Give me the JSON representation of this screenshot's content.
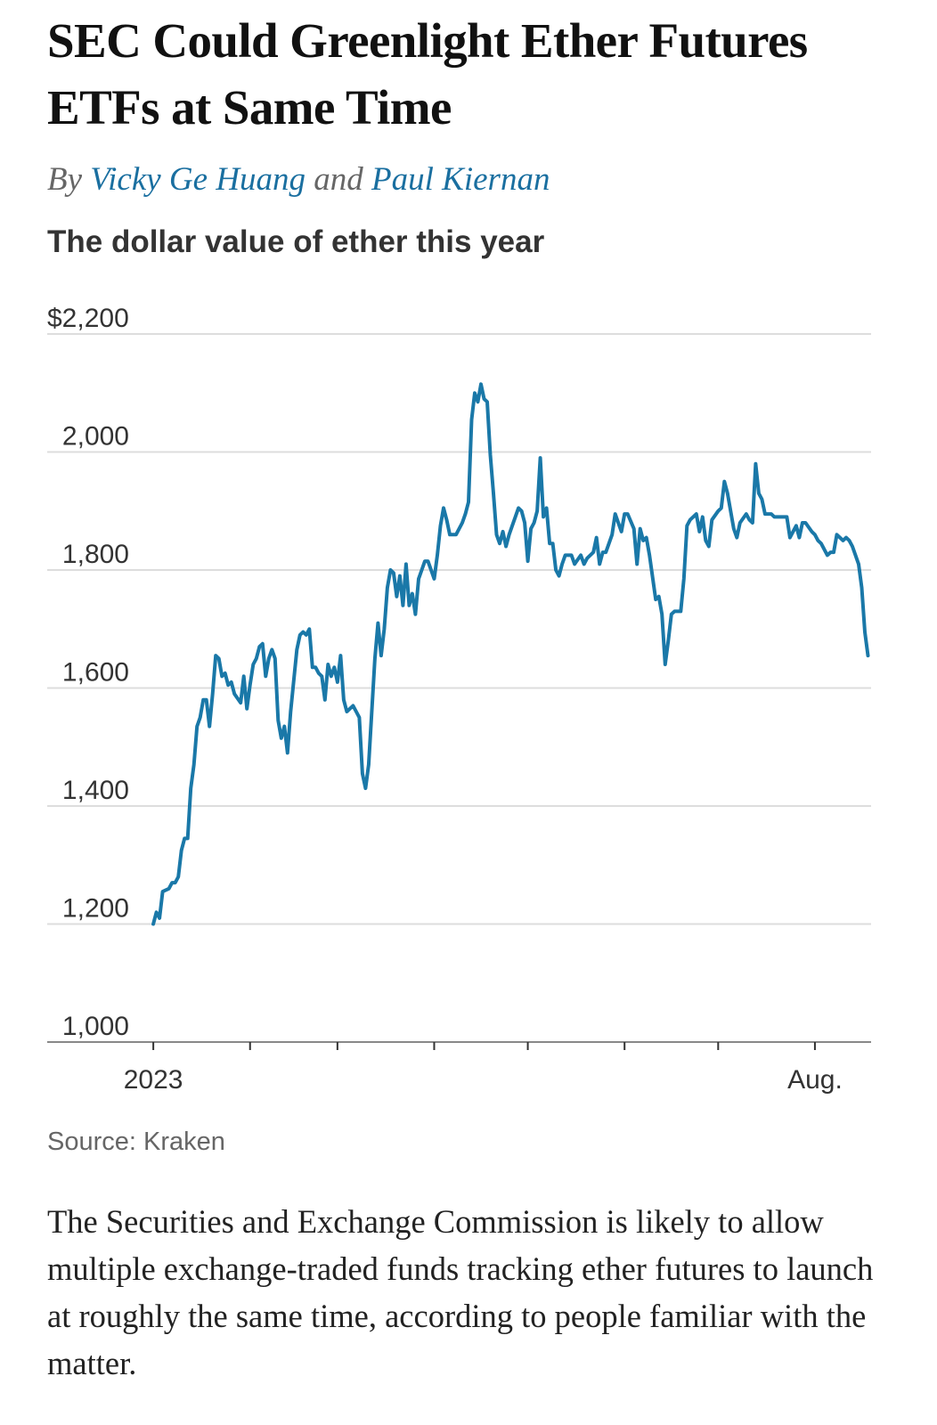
{
  "headline": "SEC Could Greenlight Ether Futures ETFs at Same Time",
  "byline": {
    "prefix": "By",
    "authors": [
      "Vicky Ge Huang",
      "Paul Kiernan"
    ],
    "conjunction": "and"
  },
  "chart_data": {
    "type": "line",
    "title": "The dollar value of ether this year",
    "source": "Source: Kraken",
    "color": "#1a78a8",
    "x": [
      0,
      1,
      2,
      3,
      5,
      6,
      7,
      8,
      9,
      10,
      11,
      12,
      13,
      14,
      15,
      16,
      17,
      18,
      19,
      20,
      21,
      22,
      23,
      24,
      25,
      26,
      28,
      29,
      30,
      31,
      32,
      33,
      34,
      35,
      36,
      37,
      38,
      39,
      40,
      41,
      42,
      43,
      44,
      46,
      47,
      48,
      49,
      50,
      51,
      52,
      53,
      54,
      55,
      56,
      57,
      58,
      59,
      60,
      61,
      62,
      63,
      64,
      65,
      66,
      67,
      68,
      69,
      70,
      71,
      72,
      73,
      74,
      75,
      76,
      77,
      78,
      79,
      80,
      81,
      82,
      83,
      84,
      85,
      86,
      87,
      88,
      89,
      90,
      91,
      92,
      93,
      94,
      95,
      97,
      99,
      100,
      101,
      102,
      103,
      104,
      105,
      106,
      107,
      108,
      109,
      110,
      111,
      112,
      113,
      114,
      115,
      116,
      117,
      118,
      119,
      120,
      121,
      122,
      123,
      124,
      125,
      126,
      127,
      128,
      129,
      130,
      131,
      132,
      134,
      135,
      137,
      138,
      139,
      141,
      142,
      143,
      144,
      145,
      147,
      148,
      149,
      150,
      151,
      152,
      154,
      155,
      156,
      157,
      158,
      159,
      161,
      162,
      163,
      164,
      165,
      166,
      167,
      169,
      170,
      171,
      172,
      174,
      175,
      176,
      177,
      178,
      179,
      181,
      182,
      183,
      184,
      185,
      186,
      187,
      188,
      190,
      191,
      192,
      193,
      194,
      195,
      196,
      197,
      198,
      199,
      200,
      202,
      203,
      204,
      205,
      206,
      207,
      208,
      209,
      211,
      212,
      213,
      214,
      216,
      217,
      218,
      219,
      220,
      221,
      222,
      223,
      224,
      226,
      227,
      228,
      229
    ],
    "values": [
      1200,
      1220,
      1210,
      1255,
      1260,
      1270,
      1270,
      1280,
      1325,
      1345,
      1345,
      1430,
      1470,
      1535,
      1550,
      1580,
      1580,
      1535,
      1590,
      1655,
      1650,
      1620,
      1625,
      1605,
      1610,
      1590,
      1575,
      1620,
      1565,
      1605,
      1640,
      1650,
      1670,
      1675,
      1620,
      1650,
      1665,
      1650,
      1545,
      1515,
      1535,
      1490,
      1560,
      1665,
      1690,
      1695,
      1690,
      1700,
      1635,
      1635,
      1625,
      1620,
      1580,
      1640,
      1620,
      1635,
      1610,
      1655,
      1580,
      1560,
      1565,
      1570,
      1560,
      1550,
      1455,
      1430,
      1470,
      1560,
      1650,
      1710,
      1655,
      1700,
      1770,
      1800,
      1795,
      1755,
      1790,
      1740,
      1810,
      1740,
      1760,
      1725,
      1785,
      1800,
      1815,
      1815,
      1800,
      1785,
      1825,
      1875,
      1905,
      1885,
      1860,
      1860,
      1880,
      1895,
      1915,
      2055,
      2100,
      2085,
      2115,
      2090,
      2085,
      1995,
      1930,
      1860,
      1845,
      1865,
      1840,
      1860,
      1875,
      1890,
      1905,
      1900,
      1880,
      1815,
      1870,
      1880,
      1900,
      1990,
      1890,
      1905,
      1845,
      1845,
      1800,
      1790,
      1810,
      1825,
      1825,
      1810,
      1825,
      1810,
      1820,
      1830,
      1855,
      1810,
      1830,
      1830,
      1860,
      1895,
      1880,
      1865,
      1895,
      1895,
      1870,
      1810,
      1870,
      1850,
      1855,
      1825,
      1750,
      1755,
      1725,
      1640,
      1680,
      1725,
      1730,
      1730,
      1785,
      1875,
      1885,
      1895,
      1865,
      1890,
      1850,
      1840,
      1885,
      1900,
      1905,
      1950,
      1930,
      1900,
      1870,
      1855,
      1880,
      1895,
      1885,
      1880,
      1980,
      1930,
      1920,
      1895,
      1895,
      1895,
      1890,
      1890,
      1890,
      1890,
      1855,
      1865,
      1875,
      1855,
      1880,
      1880,
      1865,
      1860,
      1850,
      1845,
      1825,
      1830,
      1830,
      1860,
      1855,
      1850,
      1855,
      1850,
      1840,
      1810,
      1770,
      1695,
      1655
    ],
    "xlim": [
      -34,
      230
    ],
    "xticks": [
      {
        "value": 0,
        "label": "2023"
      },
      {
        "value": 31,
        "label": null
      },
      {
        "value": 59,
        "label": null
      },
      {
        "value": 90,
        "label": null
      },
      {
        "value": 120,
        "label": null
      },
      {
        "value": 151,
        "label": null
      },
      {
        "value": 181,
        "label": null
      },
      {
        "value": 212,
        "label": "Aug."
      }
    ],
    "ylim": [
      1000,
      2200
    ],
    "yticks": [
      {
        "value": 1000,
        "label": "1,000"
      },
      {
        "value": 1200,
        "label": "1,200"
      },
      {
        "value": 1400,
        "label": "1,400"
      },
      {
        "value": 1600,
        "label": "1,600"
      },
      {
        "value": 1800,
        "label": "1,800"
      },
      {
        "value": 2000,
        "label": "2,000"
      },
      {
        "value": 2200,
        "label": "$2,200"
      }
    ],
    "grid": true
  },
  "body": "The Securities and Exchange Commission is likely to allow multiple exchange-traded funds tracking ether futures to launch at roughly the same time, according to people familiar with the matter."
}
